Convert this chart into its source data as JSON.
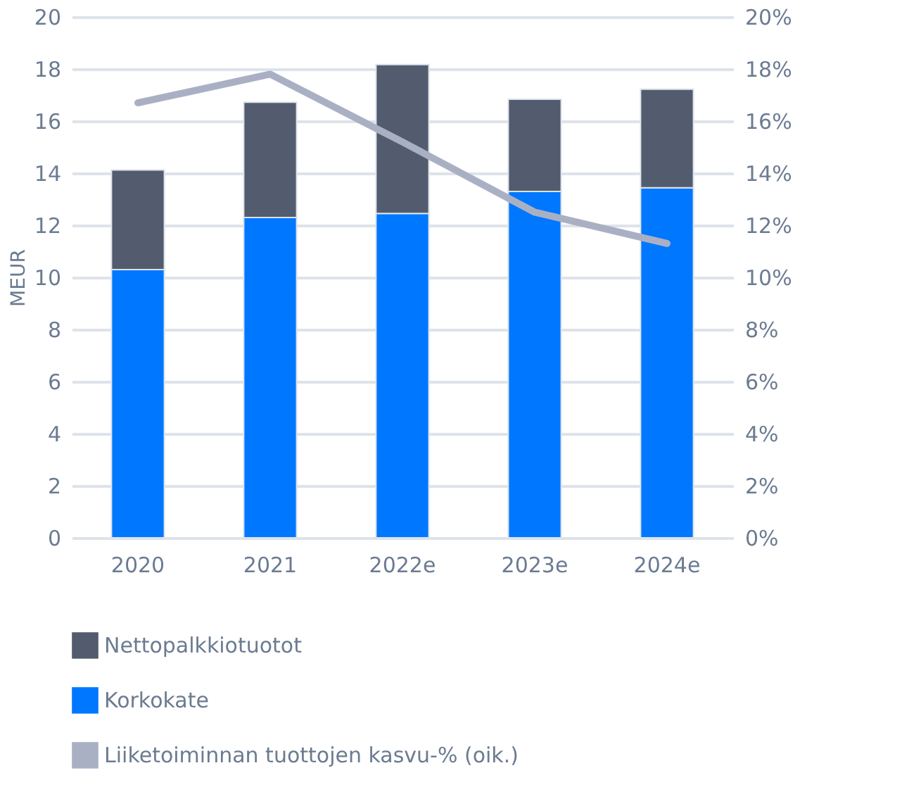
{
  "chart_data": {
    "type": "bar",
    "stacked": true,
    "ylabel": "MEUR",
    "categories": [
      "2020",
      "2021",
      "2022e",
      "2023e",
      "2024e"
    ],
    "series": [
      {
        "name": "Korkokate",
        "color": "#0077ff",
        "values": [
          10.3,
          12.3,
          12.45,
          13.3,
          13.44
        ]
      },
      {
        "name": "Nettopalkkiotuotot",
        "color": "#525c6e",
        "values": [
          3.82,
          4.42,
          5.72,
          3.54,
          3.78
        ]
      },
      {
        "name": "Liiketoiminnan tuottojen kasvu-% (oik.)",
        "type": "line",
        "axis": "y2",
        "color": "#aab0c4",
        "values": [
          16.7,
          17.8,
          15.2,
          12.5,
          11.3
        ]
      }
    ],
    "ylim": [
      0,
      20
    ],
    "yticks": [
      0,
      2,
      4,
      6,
      8,
      10,
      12,
      14,
      16,
      18,
      20
    ],
    "y2lim": [
      0,
      20
    ],
    "y2ticks": [
      {
        "value": 0,
        "label": "0%"
      },
      {
        "value": 2,
        "label": "2%"
      },
      {
        "value": 4,
        "label": "4%"
      },
      {
        "value": 6,
        "label": "6%"
      },
      {
        "value": 8,
        "label": "8%"
      },
      {
        "value": 10,
        "label": "10%"
      },
      {
        "value": 12,
        "label": "12%"
      },
      {
        "value": 14,
        "label": "14%"
      },
      {
        "value": 16,
        "label": "16%"
      },
      {
        "value": 18,
        "label": "18%"
      },
      {
        "value": 20,
        "label": "20%"
      }
    ],
    "grid": "y",
    "legend": "bottom",
    "marker": "none",
    "line_style": "solid"
  }
}
